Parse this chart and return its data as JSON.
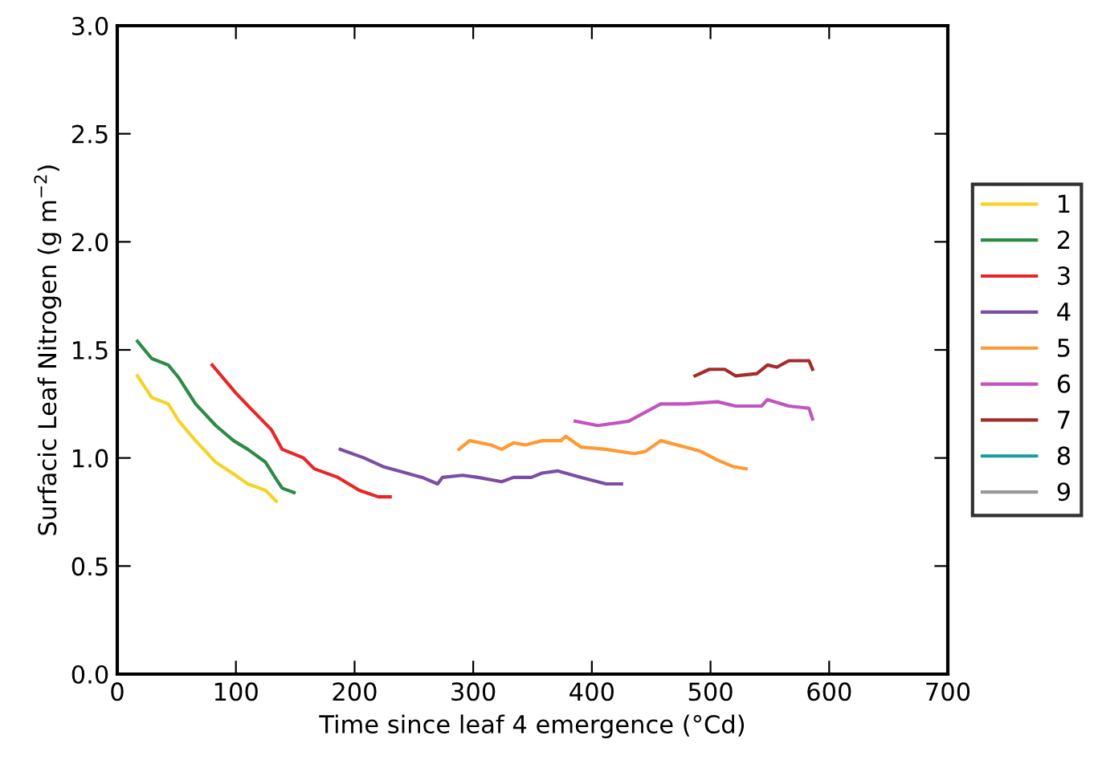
{
  "chart_data": {
    "type": "line",
    "xlabel": "Time since leaf 4 emergence (°Cd)",
    "ylabel": "Surfacic Leaf Nitrogen (g m$^{−2}$)",
    "xlim": [
      0,
      700
    ],
    "xticks": [
      0,
      100,
      200,
      300,
      400,
      500,
      600,
      700
    ],
    "ylim": [
      0.0,
      3.0
    ],
    "yticks": [
      {
        "value": 0.0,
        "label": "0.0"
      },
      {
        "value": 0.5,
        "label": "0.5"
      },
      {
        "value": 1.0,
        "label": "1.0"
      },
      {
        "value": 1.5,
        "label": "1.5"
      },
      {
        "value": 2.0,
        "label": "2.0"
      },
      {
        "value": 2.5,
        "label": "2.5"
      },
      {
        "value": 3.0,
        "label": "3.0"
      }
    ],
    "grid": false,
    "legend": "right",
    "marker": "none",
    "line_style": "solid",
    "series": [
      {
        "name": "1",
        "color": "#f5d327",
        "x": [
          17,
          29,
          43,
          52,
          66,
          83,
          97,
          110,
          125,
          134
        ],
        "values": [
          1.38,
          1.28,
          1.25,
          1.17,
          1.08,
          0.98,
          0.93,
          0.88,
          0.85,
          0.8
        ]
      },
      {
        "name": "2",
        "color": "#2e8b45",
        "x": [
          17,
          29,
          43,
          52,
          66,
          83,
          98,
          110,
          125,
          133,
          139,
          149
        ],
        "values": [
          1.54,
          1.46,
          1.43,
          1.37,
          1.25,
          1.15,
          1.08,
          1.04,
          0.98,
          0.91,
          0.86,
          0.84
        ]
      },
      {
        "name": "3",
        "color": "#e8262a",
        "x": [
          80,
          100,
          114,
          130,
          139,
          157,
          166,
          186,
          204,
          220,
          230
        ],
        "values": [
          1.43,
          1.3,
          1.22,
          1.13,
          1.04,
          1.0,
          0.95,
          0.91,
          0.85,
          0.82,
          0.82
        ]
      },
      {
        "name": "4",
        "color": "#7b4ea3",
        "x": [
          188,
          208,
          224,
          237,
          257,
          270,
          274,
          291,
          304,
          324,
          334,
          349,
          358,
          371,
          391,
          412,
          425
        ],
        "values": [
          1.04,
          1.0,
          0.96,
          0.94,
          0.91,
          0.88,
          0.91,
          0.92,
          0.91,
          0.89,
          0.91,
          0.91,
          0.93,
          0.94,
          0.91,
          0.88,
          0.88
        ]
      },
      {
        "name": "5",
        "color": "#ff9933",
        "x": [
          288,
          297,
          315,
          324,
          334,
          344,
          358,
          374,
          378,
          391,
          412,
          436,
          445,
          458,
          479,
          492,
          506,
          519,
          530
        ],
        "values": [
          1.04,
          1.08,
          1.06,
          1.04,
          1.07,
          1.06,
          1.08,
          1.08,
          1.1,
          1.05,
          1.04,
          1.02,
          1.03,
          1.08,
          1.05,
          1.03,
          0.99,
          0.96,
          0.95
        ]
      },
      {
        "name": "6",
        "color": "#c154c1",
        "x": [
          386,
          405,
          431,
          458,
          479,
          506,
          521,
          543,
          548,
          566,
          583,
          586
        ],
        "values": [
          1.17,
          1.15,
          1.17,
          1.25,
          1.25,
          1.26,
          1.24,
          1.24,
          1.27,
          1.24,
          1.23,
          1.18
        ]
      },
      {
        "name": "7",
        "color": "#a52a2a",
        "x": [
          487,
          499,
          512,
          521,
          539,
          548,
          556,
          566,
          583,
          586
        ],
        "values": [
          1.38,
          1.41,
          1.41,
          1.38,
          1.39,
          1.43,
          1.42,
          1.45,
          1.45,
          1.41
        ]
      },
      {
        "name": "8",
        "color": "#1a9c9c"
      },
      {
        "name": "9",
        "color": "#999999"
      }
    ]
  }
}
